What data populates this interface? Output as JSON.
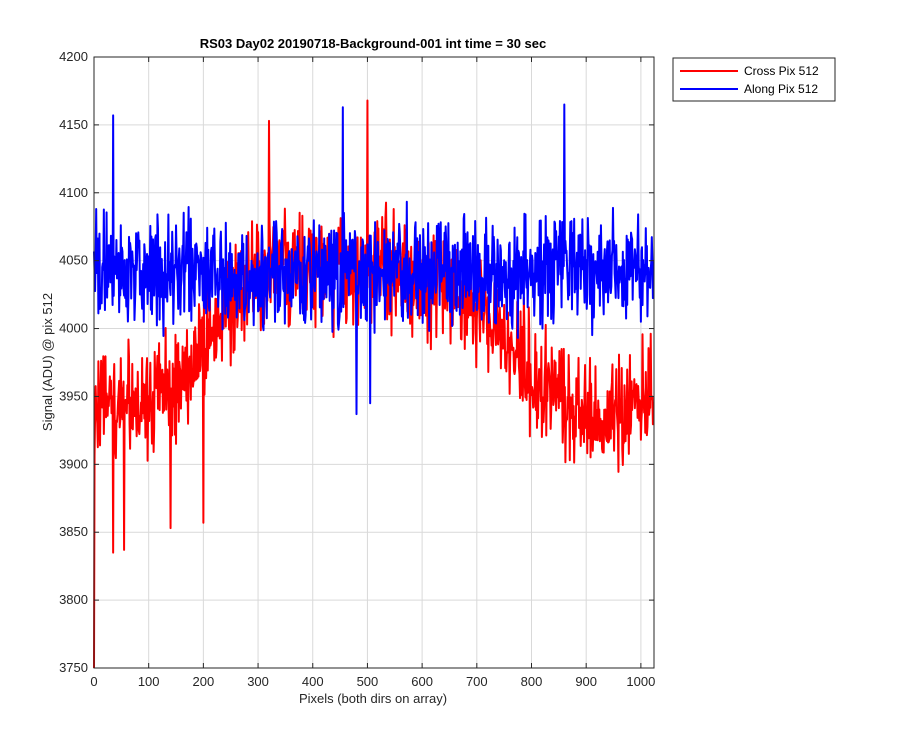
{
  "chart_data": {
    "type": "line",
    "title": "RS03 Day02 20190718-Background-001 int time = 30 sec",
    "xlabel": "Pixels (both dirs on array)",
    "ylabel": "Signal (ADU) @ pix 512",
    "xlim": [
      0,
      1024
    ],
    "ylim": [
      3750,
      4200
    ],
    "xticks": [
      0,
      100,
      200,
      300,
      400,
      500,
      600,
      700,
      800,
      900,
      1000
    ],
    "yticks": [
      3750,
      3800,
      3850,
      3900,
      3950,
      4000,
      4050,
      4100,
      4150,
      4200
    ],
    "grid": true,
    "legend_position": "outside-top-right",
    "series": [
      {
        "name": "Cross Pix 512",
        "color": "#ff0000",
        "center": [
          [
            0,
            3950
          ],
          [
            50,
            3945
          ],
          [
            100,
            3950
          ],
          [
            150,
            3960
          ],
          [
            200,
            3985
          ],
          [
            250,
            4020
          ],
          [
            300,
            4040
          ],
          [
            350,
            4045
          ],
          [
            400,
            4045
          ],
          [
            450,
            4045
          ],
          [
            500,
            4045
          ],
          [
            550,
            4040
          ],
          [
            600,
            4035
          ],
          [
            650,
            4030
          ],
          [
            700,
            4015
          ],
          [
            750,
            3990
          ],
          [
            800,
            3965
          ],
          [
            850,
            3945
          ],
          [
            900,
            3930
          ],
          [
            950,
            3935
          ],
          [
            1000,
            3945
          ],
          [
            1024,
            3950
          ]
        ],
        "noise_amplitude": 40,
        "points": 1024,
        "extremes": [
          [
            0,
            3750
          ],
          [
            35,
            3835
          ],
          [
            55,
            3837
          ],
          [
            140,
            3853
          ],
          [
            200,
            3857
          ],
          [
            320,
            4153
          ],
          [
            500,
            4168
          ]
        ]
      },
      {
        "name": "Along Pix 512",
        "color": "#0000ff",
        "center": [
          [
            0,
            4045
          ],
          [
            100,
            4043
          ],
          [
            200,
            4042
          ],
          [
            300,
            4040
          ],
          [
            400,
            4040
          ],
          [
            500,
            4040
          ],
          [
            600,
            4040
          ],
          [
            700,
            4040
          ],
          [
            800,
            4042
          ],
          [
            900,
            4043
          ],
          [
            1024,
            4045
          ]
        ],
        "noise_amplitude": 38,
        "points": 1024,
        "extremes": [
          [
            35,
            4157
          ],
          [
            455,
            4163
          ],
          [
            480,
            3937
          ],
          [
            505,
            3945
          ],
          [
            860,
            4165
          ]
        ]
      }
    ]
  }
}
